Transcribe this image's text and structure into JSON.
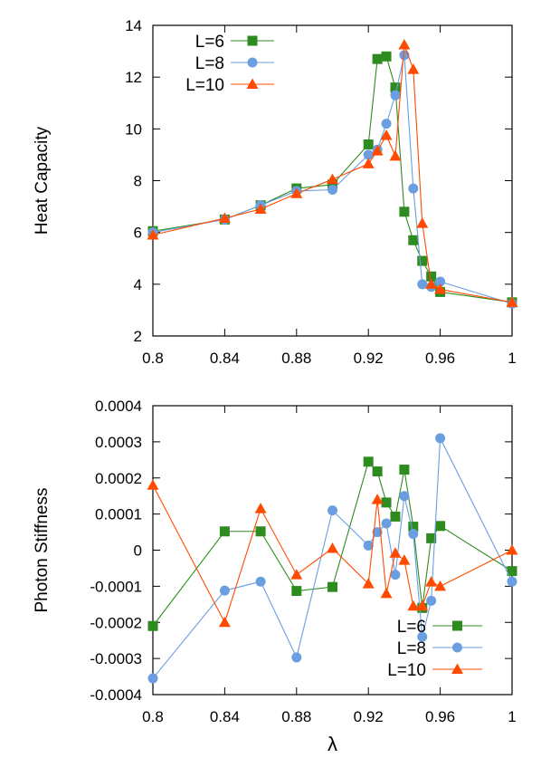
{
  "chart_data": [
    {
      "type": "line",
      "ylabel": "Heat Capacity",
      "xlabel": "",
      "xlim": [
        0.8,
        1.0
      ],
      "ylim": [
        2,
        14
      ],
      "xticks": [
        "0.8",
        "0.84",
        "0.88",
        "0.92",
        "0.96",
        "1"
      ],
      "yticks": [
        "2",
        "4",
        "6",
        "8",
        "10",
        "12",
        "14"
      ],
      "legend_position": "top-left",
      "grid": false,
      "series": [
        {
          "name": "L=6",
          "color": "#2e8b20",
          "marker": "square",
          "x": [
            0.8,
            0.84,
            0.86,
            0.88,
            0.9,
            0.92,
            0.925,
            0.93,
            0.935,
            0.94,
            0.945,
            0.95,
            0.955,
            0.96,
            1.0
          ],
          "y": [
            6.05,
            6.5,
            7.05,
            7.7,
            7.85,
            9.4,
            12.7,
            12.8,
            11.6,
            6.8,
            5.7,
            4.9,
            4.3,
            3.7,
            3.3
          ]
        },
        {
          "name": "L=8",
          "color": "#6a9ee0",
          "marker": "circle",
          "x": [
            0.8,
            0.84,
            0.86,
            0.88,
            0.9,
            0.92,
            0.925,
            0.93,
            0.935,
            0.94,
            0.945,
            0.95,
            0.955,
            0.96,
            1.0
          ],
          "y": [
            6.0,
            6.5,
            7.05,
            7.6,
            7.65,
            9.0,
            9.2,
            10.2,
            11.3,
            12.85,
            7.7,
            4.0,
            3.9,
            4.1,
            3.25
          ]
        },
        {
          "name": "L=10",
          "color": "#ff4a00",
          "marker": "triangle",
          "x": [
            0.8,
            0.84,
            0.86,
            0.88,
            0.9,
            0.92,
            0.925,
            0.93,
            0.935,
            0.94,
            0.945,
            0.95,
            0.955,
            0.96,
            1.0
          ],
          "y": [
            5.9,
            6.55,
            6.9,
            7.5,
            8.05,
            8.65,
            9.15,
            9.75,
            8.95,
            13.25,
            12.3,
            6.35,
            4.0,
            3.8,
            3.3
          ]
        }
      ]
    },
    {
      "type": "line",
      "ylabel": "Photon Stiffness",
      "xlabel": "λ",
      "xlim": [
        0.8,
        1.0
      ],
      "ylim": [
        -0.0004,
        0.0004
      ],
      "xticks": [
        "0.8",
        "0.84",
        "0.88",
        "0.92",
        "0.96",
        "1"
      ],
      "yticks": [
        "-0.0004",
        "-0.0003",
        "-0.0002",
        "-0.0001",
        "0",
        "0.0001",
        "0.0002",
        "0.0003",
        "0.0004"
      ],
      "legend_position": "bottom-right",
      "grid": false,
      "series": [
        {
          "name": "L=6",
          "color": "#2e8b20",
          "marker": "square",
          "x": [
            0.8,
            0.84,
            0.86,
            0.88,
            0.9,
            0.92,
            0.925,
            0.93,
            0.935,
            0.94,
            0.945,
            0.95,
            0.955,
            0.96,
            1.0
          ],
          "y": [
            -0.00021,
            5.2e-05,
            5.2e-05,
            -0.000113,
            -0.000102,
            0.000245,
            0.000218,
            0.000132,
            9.3e-05,
            0.000223,
            6.5e-05,
            -0.00016,
            3.3e-05,
            6.7e-05,
            -5.8e-05
          ]
        },
        {
          "name": "L=8",
          "color": "#6a9ee0",
          "marker": "circle",
          "x": [
            0.8,
            0.84,
            0.86,
            0.88,
            0.9,
            0.92,
            0.925,
            0.93,
            0.935,
            0.94,
            0.945,
            0.95,
            0.955,
            0.96,
            1.0
          ],
          "y": [
            -0.000355,
            -0.000112,
            -8.7e-05,
            -0.000297,
            0.00011,
            1.3e-05,
            5e-05,
            7.4e-05,
            -6.8e-05,
            0.00015,
            4.5e-05,
            -0.00024,
            -0.00014,
            0.00031,
            -8.7e-05
          ]
        },
        {
          "name": "L=10",
          "color": "#ff4a00",
          "marker": "triangle",
          "x": [
            0.8,
            0.84,
            0.86,
            0.88,
            0.9,
            0.92,
            0.925,
            0.93,
            0.935,
            0.94,
            0.945,
            0.95,
            0.955,
            0.96,
            1.0
          ],
          "y": [
            0.00018,
            -0.0002,
            0.000115,
            -6.8e-05,
            5e-06,
            -9.3e-05,
            0.00014,
            -0.00012,
            -8e-06,
            -2.8e-05,
            -0.000155,
            -0.000155,
            -8.8e-05,
            -0.0001,
            0.0
          ]
        }
      ]
    }
  ]
}
